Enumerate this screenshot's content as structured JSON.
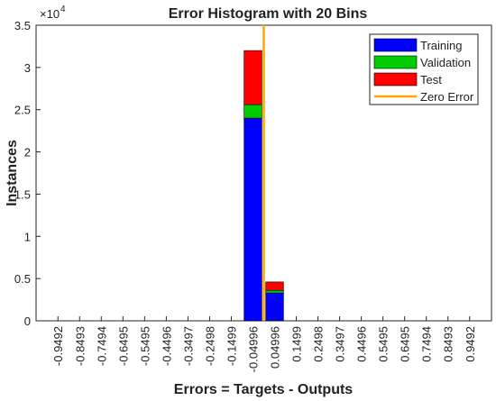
{
  "chart_data": {
    "type": "bar",
    "stacked": true,
    "title": "Error Histogram with 20 Bins",
    "x_label": "Errors = Targets - Outputs",
    "y_label": "Instances",
    "y_scale_label": "×10",
    "y_scale_exponent": "4",
    "x": [
      -0.9492,
      -0.8493,
      -0.7494,
      -0.6495,
      -0.5495,
      -0.4496,
      -0.3497,
      -0.2498,
      -0.1499,
      -0.04996,
      0.04996,
      0.1499,
      0.2498,
      0.3497,
      0.4496,
      0.5495,
      0.6495,
      0.7494,
      0.8493,
      0.9492
    ],
    "series": [
      {
        "name": "Training",
        "color": "#0000ff",
        "values": [
          0,
          0,
          0,
          0,
          0,
          0,
          0,
          0,
          0,
          2.4,
          0.33,
          0,
          0,
          0,
          0,
          0,
          0,
          0,
          0,
          0
        ]
      },
      {
        "name": "Validation",
        "color": "#00cc00",
        "values": [
          0,
          0,
          0,
          0,
          0,
          0,
          0,
          0,
          0,
          0.16,
          0.03,
          0,
          0,
          0,
          0,
          0,
          0,
          0,
          0,
          0
        ]
      },
      {
        "name": "Test",
        "color": "#ff0000",
        "values": [
          0,
          0,
          0,
          0,
          0,
          0,
          0,
          0,
          0,
          0.64,
          0.1,
          0,
          0,
          0,
          0,
          0,
          0,
          0,
          0,
          0
        ]
      }
    ],
    "reference_line": {
      "name": "Zero Error",
      "color": "#ffa500",
      "x": 0
    },
    "xlim": [
      -1.05,
      1.05
    ],
    "ylim": [
      0,
      3.5
    ],
    "yticks": [
      0,
      0.5,
      1,
      1.5,
      2,
      2.5,
      3,
      3.5
    ],
    "legend": "top-right"
  }
}
